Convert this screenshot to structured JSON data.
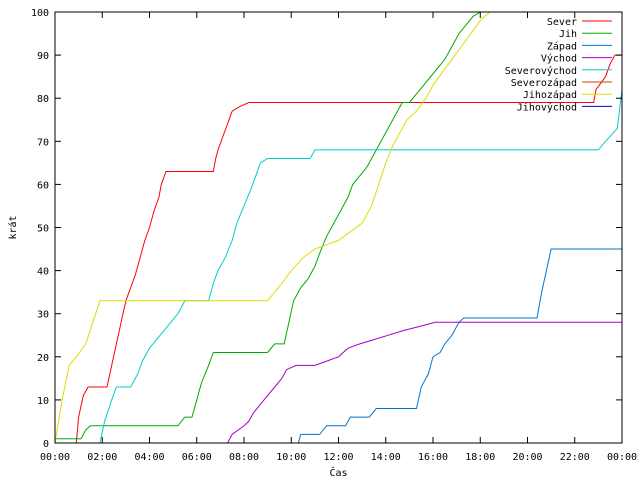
{
  "chart_data": {
    "type": "line",
    "xlabel": "Čas",
    "ylabel": "krát",
    "xlim": [
      0,
      24
    ],
    "ylim": [
      0,
      100
    ],
    "grid": false,
    "legend_position": "top-right",
    "x_tick_labels": [
      "00:00",
      "02:00",
      "04:00",
      "06:00",
      "08:00",
      "10:00",
      "12:00",
      "14:00",
      "16:00",
      "18:00",
      "20:00",
      "22:00",
      "00:00"
    ],
    "y_tick_labels": [
      "0",
      "10",
      "20",
      "30",
      "40",
      "50",
      "60",
      "70",
      "80",
      "90",
      "100"
    ],
    "series": [
      {
        "name": "Sever",
        "color": "#ff0000",
        "points": [
          [
            0.9,
            0
          ],
          [
            1.0,
            6
          ],
          [
            1.2,
            11
          ],
          [
            1.4,
            13
          ],
          [
            2.2,
            13
          ],
          [
            2.4,
            18
          ],
          [
            2.6,
            23
          ],
          [
            2.8,
            28
          ],
          [
            3.0,
            33
          ],
          [
            3.2,
            36
          ],
          [
            3.4,
            39
          ],
          [
            3.6,
            43
          ],
          [
            3.8,
            47
          ],
          [
            4.0,
            50
          ],
          [
            4.2,
            54
          ],
          [
            4.4,
            57
          ],
          [
            4.5,
            60
          ],
          [
            4.7,
            63
          ],
          [
            6.7,
            63
          ],
          [
            6.8,
            66
          ],
          [
            6.9,
            68
          ],
          [
            7.1,
            71
          ],
          [
            7.3,
            74
          ],
          [
            7.5,
            77
          ],
          [
            7.8,
            78
          ],
          [
            8.2,
            79
          ],
          [
            22.8,
            79
          ],
          [
            22.9,
            82
          ],
          [
            23.3,
            85
          ],
          [
            23.5,
            88
          ],
          [
            23.7,
            90
          ],
          [
            24,
            90
          ]
        ]
      },
      {
        "name": "Jih",
        "color": "#00aa00",
        "points": [
          [
            0,
            1
          ],
          [
            1.1,
            1
          ],
          [
            1.3,
            3
          ],
          [
            1.5,
            4
          ],
          [
            5.2,
            4
          ],
          [
            5.5,
            6
          ],
          [
            5.8,
            6
          ],
          [
            6.0,
            10
          ],
          [
            6.2,
            14
          ],
          [
            6.5,
            18
          ],
          [
            6.7,
            21
          ],
          [
            9.0,
            21
          ],
          [
            9.3,
            23
          ],
          [
            9.7,
            23
          ],
          [
            9.9,
            28
          ],
          [
            10.1,
            33
          ],
          [
            10.4,
            36
          ],
          [
            10.7,
            38
          ],
          [
            11.0,
            41
          ],
          [
            11.2,
            44
          ],
          [
            11.5,
            48
          ],
          [
            11.8,
            51
          ],
          [
            12.1,
            54
          ],
          [
            12.4,
            57
          ],
          [
            12.6,
            60
          ],
          [
            12.9,
            62
          ],
          [
            13.2,
            64
          ],
          [
            13.5,
            67
          ],
          [
            13.8,
            70
          ],
          [
            14.1,
            73
          ],
          [
            14.4,
            76
          ],
          [
            14.7,
            79
          ],
          [
            15.0,
            79
          ],
          [
            15.3,
            81
          ],
          [
            15.6,
            83
          ],
          [
            15.9,
            85
          ],
          [
            16.2,
            87
          ],
          [
            16.5,
            89
          ],
          [
            16.8,
            92
          ],
          [
            17.1,
            95
          ],
          [
            17.4,
            97
          ],
          [
            17.7,
            99
          ],
          [
            18.0,
            100
          ]
        ]
      },
      {
        "name": "Západ",
        "color": "#0077cc",
        "points": [
          [
            10.3,
            0
          ],
          [
            10.4,
            2
          ],
          [
            11.2,
            2
          ],
          [
            11.5,
            4
          ],
          [
            12.3,
            4
          ],
          [
            12.5,
            6
          ],
          [
            13.3,
            6
          ],
          [
            13.6,
            8
          ],
          [
            15.3,
            8
          ],
          [
            15.5,
            13
          ],
          [
            15.8,
            16
          ],
          [
            16.0,
            20
          ],
          [
            16.3,
            21
          ],
          [
            16.5,
            23
          ],
          [
            16.8,
            25
          ],
          [
            17.1,
            28
          ],
          [
            17.3,
            29
          ],
          [
            20.4,
            29
          ],
          [
            20.6,
            35
          ],
          [
            20.8,
            40
          ],
          [
            21.0,
            45
          ],
          [
            24,
            45
          ],
          [
            24,
            47
          ]
        ]
      },
      {
        "name": "Východ",
        "color": "#aa00cc",
        "points": [
          [
            7.3,
            0
          ],
          [
            7.5,
            2
          ],
          [
            8.0,
            4
          ],
          [
            8.2,
            5
          ],
          [
            8.4,
            7
          ],
          [
            8.7,
            9
          ],
          [
            9.0,
            11
          ],
          [
            9.3,
            13
          ],
          [
            9.6,
            15
          ],
          [
            9.8,
            17
          ],
          [
            10.2,
            18
          ],
          [
            11.0,
            18
          ],
          [
            11.5,
            19
          ],
          [
            12.0,
            20
          ],
          [
            12.4,
            22
          ],
          [
            12.9,
            23
          ],
          [
            13.5,
            24
          ],
          [
            14.1,
            25
          ],
          [
            14.7,
            26
          ],
          [
            15.4,
            27
          ],
          [
            16.1,
            28
          ],
          [
            24,
            28
          ]
        ]
      },
      {
        "name": "Severovýchod",
        "color": "#00cccc",
        "points": [
          [
            0,
            0
          ],
          [
            1.9,
            0
          ],
          [
            2.1,
            5
          ],
          [
            2.4,
            10
          ],
          [
            2.6,
            13
          ],
          [
            3.2,
            13
          ],
          [
            3.5,
            16
          ],
          [
            3.7,
            19
          ],
          [
            4.0,
            22
          ],
          [
            4.3,
            24
          ],
          [
            4.6,
            26
          ],
          [
            4.9,
            28
          ],
          [
            5.2,
            30
          ],
          [
            5.5,
            33
          ],
          [
            6.5,
            33
          ],
          [
            6.7,
            37
          ],
          [
            6.9,
            40
          ],
          [
            7.2,
            43
          ],
          [
            7.5,
            47
          ],
          [
            7.7,
            51
          ],
          [
            8.0,
            55
          ],
          [
            8.3,
            59
          ],
          [
            8.5,
            62
          ],
          [
            8.7,
            65
          ],
          [
            9.0,
            66
          ],
          [
            10.8,
            66
          ],
          [
            11.0,
            68
          ],
          [
            23.0,
            68
          ],
          [
            23.3,
            70
          ],
          [
            23.8,
            73
          ],
          [
            24,
            82
          ]
        ]
      },
      {
        "name": "Severozápad",
        "color": "#cc4400",
        "points": []
      },
      {
        "name": "Jihozápad",
        "color": "#dddd00",
        "points": [
          [
            0,
            0
          ],
          [
            0.3,
            10
          ],
          [
            0.6,
            18
          ],
          [
            0.9,
            20
          ],
          [
            1.3,
            23
          ],
          [
            1.6,
            28
          ],
          [
            1.9,
            33
          ],
          [
            9.0,
            33
          ],
          [
            9.3,
            35
          ],
          [
            9.6,
            37
          ],
          [
            10.0,
            40
          ],
          [
            10.5,
            43
          ],
          [
            11.0,
            45
          ],
          [
            11.5,
            46
          ],
          [
            12.0,
            47
          ],
          [
            12.5,
            49
          ],
          [
            13.0,
            51
          ],
          [
            13.4,
            55
          ],
          [
            13.7,
            60
          ],
          [
            14.0,
            65
          ],
          [
            14.3,
            69
          ],
          [
            14.6,
            72
          ],
          [
            14.9,
            75
          ],
          [
            15.3,
            77
          ],
          [
            15.7,
            80
          ],
          [
            16.0,
            83
          ],
          [
            16.4,
            86
          ],
          [
            16.8,
            89
          ],
          [
            17.2,
            92
          ],
          [
            17.6,
            95
          ],
          [
            18.0,
            98
          ],
          [
            18.4,
            100
          ]
        ]
      },
      {
        "name": "Jihovýchod",
        "color": "#0000cc",
        "points": []
      }
    ]
  }
}
